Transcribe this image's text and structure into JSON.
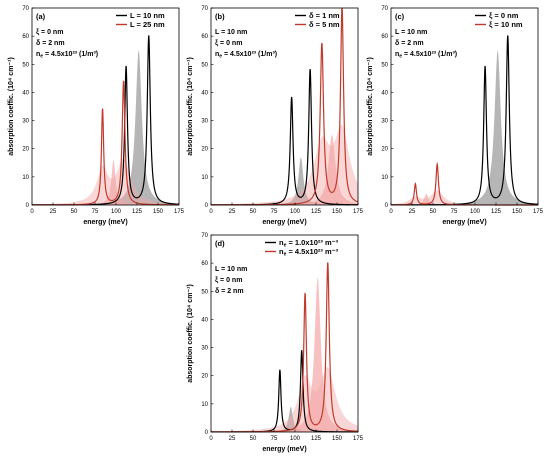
{
  "colors": {
    "black": "#000000",
    "red": "#c0392b",
    "gray_fill": "#a9a9a9",
    "red_fill": "#f4a6a6",
    "frame": "#000000"
  },
  "chart_data": [
    {
      "id": "a",
      "type": "line",
      "panel_label": "(a)",
      "xlabel": "energy (meV)",
      "ylabel": "absorption coeffic. (10⁴ cm⁻¹)",
      "xlim": [
        0,
        175
      ],
      "ylim": [
        0,
        70
      ],
      "xticks": [
        0,
        25,
        50,
        75,
        100,
        125,
        150,
        175
      ],
      "yticks": [
        0,
        10,
        20,
        30,
        40,
        50,
        60,
        70
      ],
      "annotations": [
        "ξ = 0 nm",
        "δ = 2 nm",
        "n_e = 4.5x10²³ (1/m³)"
      ],
      "legend_position": "top-right",
      "series": [
        {
          "name": "L = 10 nm",
          "color": "black",
          "peaks": [
            {
              "x": 112,
              "y": 49,
              "w": 2.0
            },
            {
              "x": 139,
              "y": 60,
              "w": 2.2
            }
          ],
          "band": {
            "x": 127,
            "y": 55,
            "w": 4.5,
            "fill": "gray"
          }
        },
        {
          "name": "L = 25 nm",
          "color": "red",
          "peaks": [
            {
              "x": 84,
              "y": 34,
              "w": 1.6
            },
            {
              "x": 109,
              "y": 44,
              "w": 2.0
            }
          ],
          "band": {
            "x": 97,
            "y": 16,
            "w": 3.0,
            "fill": "red"
          }
        }
      ]
    },
    {
      "id": "b",
      "type": "line",
      "panel_label": "(b)",
      "xlabel": "energy (meV)",
      "ylabel": "absorption coeffic. (10⁴ cm⁻¹)",
      "xlim": [
        0,
        175
      ],
      "ylim": [
        0,
        70
      ],
      "xticks": [
        0,
        25,
        50,
        75,
        100,
        125,
        150,
        175
      ],
      "yticks": [
        0,
        10,
        20,
        30,
        40,
        50,
        60,
        70
      ],
      "annotations": [
        "L = 10 nm",
        "ξ = 0 nm",
        "n_e = 4.5x10²³ (1/m³)"
      ],
      "legend_position": "top-right",
      "series": [
        {
          "name": "δ = 1 nm",
          "color": "black",
          "peaks": [
            {
              "x": 96,
              "y": 38,
              "w": 2.0
            },
            {
              "x": 118,
              "y": 48,
              "w": 2.0
            }
          ],
          "band": {
            "x": 107,
            "y": 17,
            "w": 3.5,
            "fill": "gray"
          }
        },
        {
          "name": "δ = 5 nm",
          "color": "red",
          "peaks": [
            {
              "x": 132,
              "y": 57,
              "w": 2.4
            },
            {
              "x": 156,
              "y": 70,
              "w": 2.2
            }
          ],
          "band": {
            "x": 144,
            "y": 25,
            "w": 5.0,
            "fill": "red"
          }
        }
      ]
    },
    {
      "id": "c",
      "type": "line",
      "panel_label": "(c)",
      "xlabel": "energy (meV)",
      "ylabel": "absorption coeffic. (10⁴ cm⁻¹)",
      "xlim": [
        0,
        175
      ],
      "ylim": [
        0,
        70
      ],
      "xticks": [
        0,
        25,
        50,
        75,
        100,
        125,
        150,
        175
      ],
      "yticks": [
        0,
        10,
        20,
        30,
        40,
        50,
        60,
        70
      ],
      "annotations": [
        "L = 10 nm",
        "δ = 2 nm",
        "n_e = 4.5x10²³ (1/m³)"
      ],
      "legend_position": "top-right",
      "series": [
        {
          "name": "ξ = 0 nm",
          "color": "black",
          "peaks": [
            {
              "x": 112,
              "y": 49,
              "w": 2.0
            },
            {
              "x": 139,
              "y": 60,
              "w": 2.2
            }
          ],
          "band": {
            "x": 127,
            "y": 55,
            "w": 4.5,
            "fill": "gray"
          }
        },
        {
          "name": "ξ = 10 nm",
          "color": "red",
          "peaks": [
            {
              "x": 29,
              "y": 7.5,
              "w": 1.6
            },
            {
              "x": 55,
              "y": 14.5,
              "w": 1.8
            }
          ],
          "band": {
            "x": 42,
            "y": 4,
            "w": 3.0,
            "fill": "red"
          }
        }
      ]
    },
    {
      "id": "d",
      "type": "line",
      "panel_label": "(d)",
      "xlabel": "energy (meV)",
      "ylabel": "absorption coeffic. (10⁴ cm⁻¹)",
      "xlim": [
        0,
        175
      ],
      "ylim": [
        0,
        70
      ],
      "xticks": [
        0,
        25,
        50,
        75,
        100,
        125,
        150,
        175
      ],
      "yticks": [
        0,
        10,
        20,
        30,
        40,
        50,
        60,
        70
      ],
      "annotations": [
        "L = 10 nm",
        "ξ = 0 nm",
        "δ = 2 nm"
      ],
      "legend_position": "top-left",
      "series": [
        {
          "name": "n_e = 1.0x10²³ m⁻³",
          "color": "black",
          "peaks": [
            {
              "x": 82,
              "y": 22,
              "w": 1.6
            },
            {
              "x": 108,
              "y": 29,
              "w": 1.8
            }
          ],
          "band": {
            "x": 95,
            "y": 9,
            "w": 3.0,
            "fill": "gray"
          }
        },
        {
          "name": "n_e = 4.5x10²³ m⁻³",
          "color": "red",
          "peaks": [
            {
              "x": 112,
              "y": 49,
              "w": 2.0
            },
            {
              "x": 139,
              "y": 60,
              "w": 2.2
            }
          ],
          "band": {
            "x": 127,
            "y": 55,
            "w": 4.5,
            "fill": "red"
          }
        }
      ]
    }
  ]
}
